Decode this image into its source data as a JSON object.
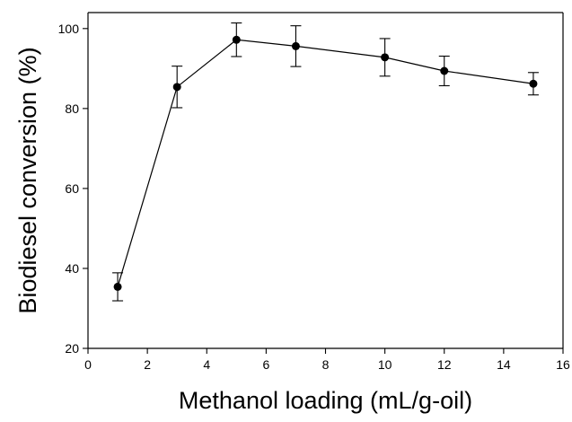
{
  "chart_data": {
    "type": "line",
    "title": "",
    "xlabel": "Methanol loading (mL/g-oil)",
    "ylabel": "Biodiesel conversion (%)",
    "xlim": [
      0,
      16
    ],
    "ylim": [
      20,
      104
    ],
    "x_ticks": [
      0,
      2,
      4,
      6,
      8,
      10,
      12,
      14,
      16
    ],
    "y_ticks": [
      20,
      40,
      60,
      80,
      100
    ],
    "grid": false,
    "legend": "none",
    "series": [
      {
        "x": [
          1,
          3,
          5,
          7,
          10,
          12,
          15
        ],
        "y": [
          35.4,
          85.4,
          97.2,
          95.6,
          92.8,
          89.4,
          86.2
        ],
        "yerr": [
          3.5,
          5.2,
          4.2,
          5.1,
          4.7,
          3.7,
          2.8
        ],
        "color": "#000000",
        "marker": "circle"
      }
    ]
  }
}
